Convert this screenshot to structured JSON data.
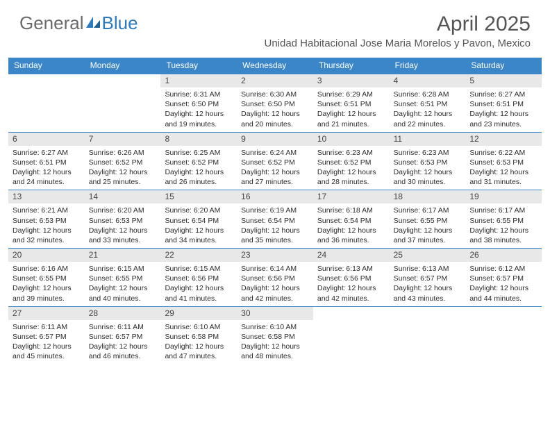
{
  "brand": {
    "part1": "General",
    "part2": "Blue"
  },
  "title": "April 2025",
  "location": "Unidad Habitacional Jose Maria Morelos y Pavon, Mexico",
  "colors": {
    "header_bar": "#3a86c8",
    "daynum_bg": "#e8e8e8",
    "text": "#333333",
    "title": "#555555"
  },
  "weekdays": [
    "Sunday",
    "Monday",
    "Tuesday",
    "Wednesday",
    "Thursday",
    "Friday",
    "Saturday"
  ],
  "calendar": {
    "type": "table",
    "leading_blanks": 2,
    "days": [
      {
        "n": 1,
        "sunrise": "6:31 AM",
        "sunset": "6:50 PM",
        "daylight": "12 hours and 19 minutes."
      },
      {
        "n": 2,
        "sunrise": "6:30 AM",
        "sunset": "6:50 PM",
        "daylight": "12 hours and 20 minutes."
      },
      {
        "n": 3,
        "sunrise": "6:29 AM",
        "sunset": "6:51 PM",
        "daylight": "12 hours and 21 minutes."
      },
      {
        "n": 4,
        "sunrise": "6:28 AM",
        "sunset": "6:51 PM",
        "daylight": "12 hours and 22 minutes."
      },
      {
        "n": 5,
        "sunrise": "6:27 AM",
        "sunset": "6:51 PM",
        "daylight": "12 hours and 23 minutes."
      },
      {
        "n": 6,
        "sunrise": "6:27 AM",
        "sunset": "6:51 PM",
        "daylight": "12 hours and 24 minutes."
      },
      {
        "n": 7,
        "sunrise": "6:26 AM",
        "sunset": "6:52 PM",
        "daylight": "12 hours and 25 minutes."
      },
      {
        "n": 8,
        "sunrise": "6:25 AM",
        "sunset": "6:52 PM",
        "daylight": "12 hours and 26 minutes."
      },
      {
        "n": 9,
        "sunrise": "6:24 AM",
        "sunset": "6:52 PM",
        "daylight": "12 hours and 27 minutes."
      },
      {
        "n": 10,
        "sunrise": "6:23 AM",
        "sunset": "6:52 PM",
        "daylight": "12 hours and 28 minutes."
      },
      {
        "n": 11,
        "sunrise": "6:23 AM",
        "sunset": "6:53 PM",
        "daylight": "12 hours and 30 minutes."
      },
      {
        "n": 12,
        "sunrise": "6:22 AM",
        "sunset": "6:53 PM",
        "daylight": "12 hours and 31 minutes."
      },
      {
        "n": 13,
        "sunrise": "6:21 AM",
        "sunset": "6:53 PM",
        "daylight": "12 hours and 32 minutes."
      },
      {
        "n": 14,
        "sunrise": "6:20 AM",
        "sunset": "6:53 PM",
        "daylight": "12 hours and 33 minutes."
      },
      {
        "n": 15,
        "sunrise": "6:20 AM",
        "sunset": "6:54 PM",
        "daylight": "12 hours and 34 minutes."
      },
      {
        "n": 16,
        "sunrise": "6:19 AM",
        "sunset": "6:54 PM",
        "daylight": "12 hours and 35 minutes."
      },
      {
        "n": 17,
        "sunrise": "6:18 AM",
        "sunset": "6:54 PM",
        "daylight": "12 hours and 36 minutes."
      },
      {
        "n": 18,
        "sunrise": "6:17 AM",
        "sunset": "6:55 PM",
        "daylight": "12 hours and 37 minutes."
      },
      {
        "n": 19,
        "sunrise": "6:17 AM",
        "sunset": "6:55 PM",
        "daylight": "12 hours and 38 minutes."
      },
      {
        "n": 20,
        "sunrise": "6:16 AM",
        "sunset": "6:55 PM",
        "daylight": "12 hours and 39 minutes."
      },
      {
        "n": 21,
        "sunrise": "6:15 AM",
        "sunset": "6:55 PM",
        "daylight": "12 hours and 40 minutes."
      },
      {
        "n": 22,
        "sunrise": "6:15 AM",
        "sunset": "6:56 PM",
        "daylight": "12 hours and 41 minutes."
      },
      {
        "n": 23,
        "sunrise": "6:14 AM",
        "sunset": "6:56 PM",
        "daylight": "12 hours and 42 minutes."
      },
      {
        "n": 24,
        "sunrise": "6:13 AM",
        "sunset": "6:56 PM",
        "daylight": "12 hours and 42 minutes."
      },
      {
        "n": 25,
        "sunrise": "6:13 AM",
        "sunset": "6:57 PM",
        "daylight": "12 hours and 43 minutes."
      },
      {
        "n": 26,
        "sunrise": "6:12 AM",
        "sunset": "6:57 PM",
        "daylight": "12 hours and 44 minutes."
      },
      {
        "n": 27,
        "sunrise": "6:11 AM",
        "sunset": "6:57 PM",
        "daylight": "12 hours and 45 minutes."
      },
      {
        "n": 28,
        "sunrise": "6:11 AM",
        "sunset": "6:57 PM",
        "daylight": "12 hours and 46 minutes."
      },
      {
        "n": 29,
        "sunrise": "6:10 AM",
        "sunset": "6:58 PM",
        "daylight": "12 hours and 47 minutes."
      },
      {
        "n": 30,
        "sunrise": "6:10 AM",
        "sunset": "6:58 PM",
        "daylight": "12 hours and 48 minutes."
      }
    ]
  },
  "labels": {
    "sunrise": "Sunrise:",
    "sunset": "Sunset:",
    "daylight": "Daylight:"
  }
}
